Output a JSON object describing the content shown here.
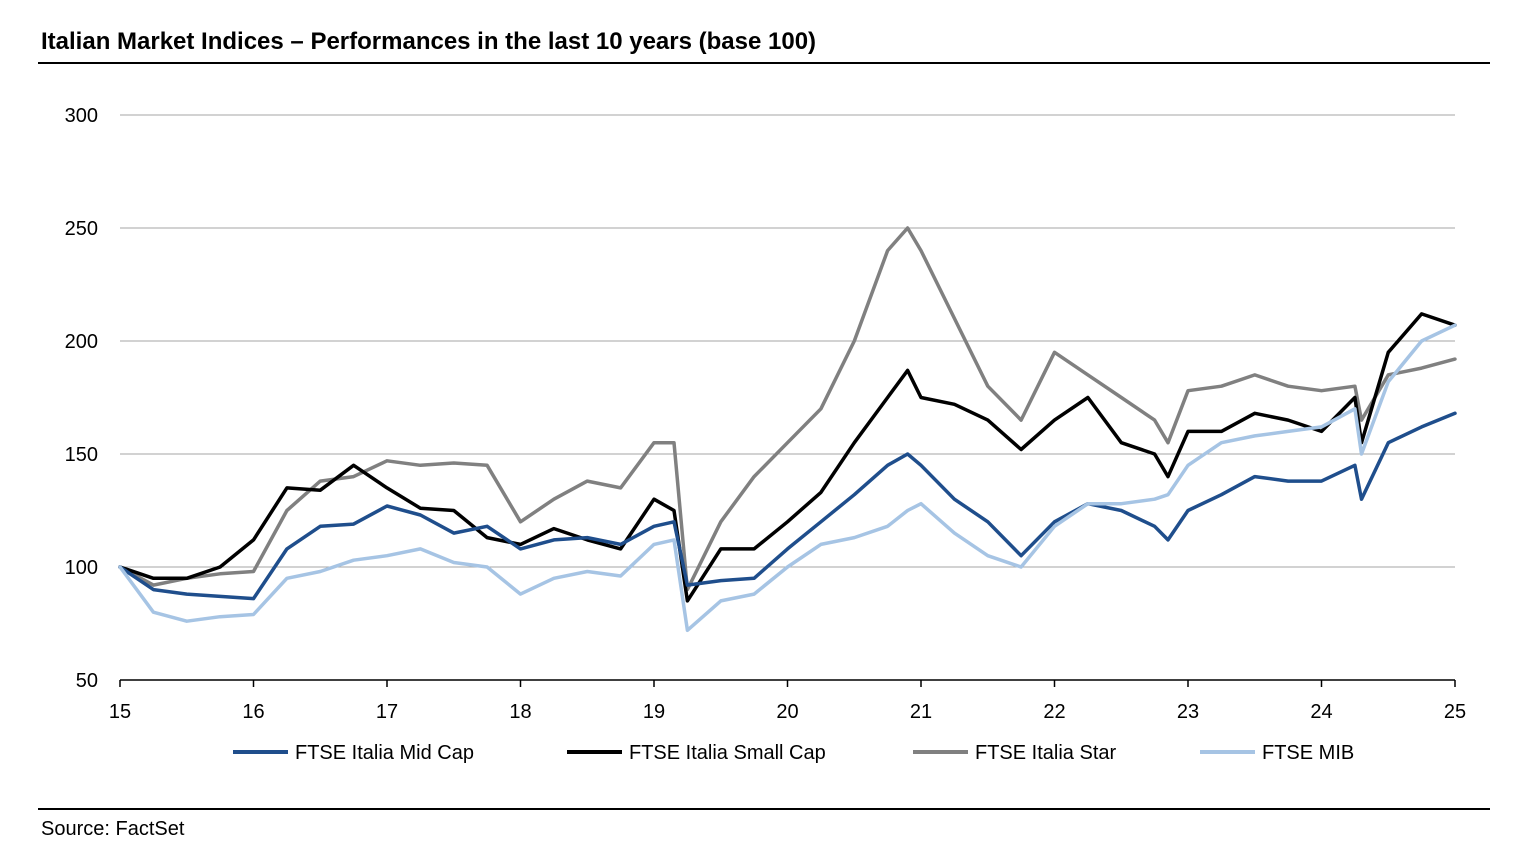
{
  "header": {
    "title": "Italian Market Indices – Performances in the last 10 years (base 100)"
  },
  "footer": {
    "source": "Source: FactSet"
  },
  "chart_data": {
    "type": "line",
    "title": "Italian Market Indices – Performances in the last 10 years (base 100)",
    "xlabel": "",
    "ylabel": "",
    "xlim": [
      15,
      25
    ],
    "ylim": [
      50,
      300
    ],
    "x_ticks": [
      15,
      16,
      17,
      18,
      19,
      20,
      21,
      22,
      23,
      24,
      25
    ],
    "y_ticks": [
      50,
      100,
      150,
      200,
      250,
      300
    ],
    "grid": "horizontal",
    "legend": "bottom",
    "x": [
      15.0,
      15.25,
      15.5,
      15.75,
      16.0,
      16.25,
      16.5,
      16.75,
      17.0,
      17.25,
      17.5,
      17.75,
      18.0,
      18.25,
      18.5,
      18.75,
      19.0,
      19.15,
      19.25,
      19.5,
      19.75,
      20.0,
      20.25,
      20.5,
      20.75,
      20.9,
      21.0,
      21.25,
      21.5,
      21.75,
      22.0,
      22.25,
      22.5,
      22.75,
      22.85,
      23.0,
      23.25,
      23.5,
      23.75,
      24.0,
      24.25,
      24.3,
      24.5,
      24.75,
      25.0
    ],
    "series": [
      {
        "name": "FTSE Italia Mid Cap",
        "color": "#1f4e8c",
        "values": [
          100,
          90,
          88,
          87,
          86,
          108,
          118,
          119,
          127,
          123,
          115,
          118,
          108,
          112,
          113,
          110,
          118,
          120,
          92,
          94,
          95,
          108,
          120,
          132,
          145,
          150,
          145,
          130,
          120,
          105,
          120,
          128,
          125,
          118,
          112,
          125,
          132,
          140,
          138,
          138,
          145,
          130,
          155,
          162,
          168
        ]
      },
      {
        "name": "FTSE Italia Small Cap",
        "color": "#000000",
        "values": [
          100,
          95,
          95,
          100,
          112,
          135,
          134,
          145,
          135,
          126,
          125,
          113,
          110,
          117,
          112,
          108,
          130,
          125,
          85,
          108,
          108,
          120,
          133,
          155,
          175,
          187,
          175,
          172,
          165,
          152,
          165,
          175,
          155,
          150,
          140,
          160,
          160,
          168,
          165,
          160,
          175,
          155,
          195,
          212,
          207
        ]
      },
      {
        "name": "FTSE Italia Star",
        "color": "#808080",
        "values": [
          100,
          92,
          95,
          97,
          98,
          125,
          138,
          140,
          147,
          145,
          146,
          145,
          120,
          130,
          138,
          135,
          155,
          155,
          90,
          120,
          140,
          155,
          170,
          200,
          240,
          250,
          240,
          210,
          180,
          165,
          195,
          185,
          175,
          165,
          155,
          178,
          180,
          185,
          180,
          178,
          180,
          165,
          185,
          188,
          192
        ]
      },
      {
        "name": "FTSE MIB",
        "color": "#a6c4e4",
        "values": [
          100,
          80,
          76,
          78,
          79,
          95,
          98,
          103,
          105,
          108,
          102,
          100,
          88,
          95,
          98,
          96,
          110,
          112,
          72,
          85,
          88,
          100,
          110,
          113,
          118,
          125,
          128,
          115,
          105,
          100,
          118,
          128,
          128,
          130,
          132,
          145,
          155,
          158,
          160,
          162,
          170,
          150,
          182,
          200,
          207
        ]
      }
    ]
  }
}
